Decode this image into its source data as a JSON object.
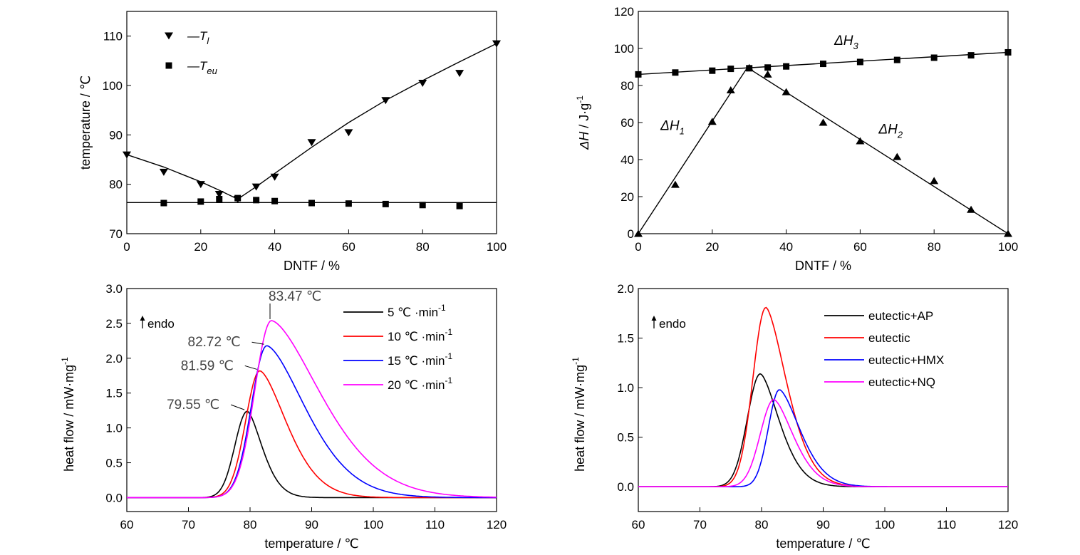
{
  "chart_data": [
    {
      "type": "scatter",
      "panel": "top-left",
      "xlabel": "DNTF / %",
      "ylabel": "temperature / ℃",
      "xlim": [
        0,
        100
      ],
      "ylim": [
        70,
        115
      ],
      "xticks": [
        0,
        20,
        40,
        60,
        80,
        100
      ],
      "yticks": [
        70,
        80,
        90,
        100,
        110
      ],
      "legend_position": "top-left",
      "series": [
        {
          "name": "—T_l",
          "legend_main": "—T",
          "legend_sub": "l",
          "marker": "triangle-down",
          "x": [
            0,
            10,
            20,
            25,
            30,
            35,
            40,
            50,
            60,
            70,
            80,
            90,
            100
          ],
          "y": [
            86.0,
            82.5,
            80.0,
            78.0,
            77.0,
            79.5,
            81.5,
            88.5,
            90.5,
            97.0,
            100.5,
            102.5,
            108.5
          ],
          "fit": {
            "x": [
              0,
              10,
              20,
              25,
              30,
              35,
              40,
              50,
              60,
              70,
              80,
              90,
              100
            ],
            "y": [
              86.0,
              83.5,
              80.5,
              78.8,
              77.0,
              79.5,
              82.2,
              87.5,
              92.5,
              97.0,
              101.0,
              104.8,
              108.5
            ]
          }
        },
        {
          "name": "—T_eu",
          "legend_main": "—T",
          "legend_sub": "eu",
          "marker": "square",
          "x": [
            10,
            20,
            25,
            30,
            35,
            40,
            50,
            60,
            70,
            80,
            90
          ],
          "y": [
            76.2,
            76.5,
            77.0,
            77.2,
            76.8,
            76.6,
            76.2,
            76.1,
            76.0,
            75.8,
            75.6
          ],
          "fit": {
            "x": [
              0,
              100
            ],
            "y": [
              76.3,
              76.3
            ]
          }
        }
      ]
    },
    {
      "type": "scatter",
      "panel": "top-right",
      "xlabel": "DNTF / %",
      "ylabel_main": "ΔH",
      "ylabel_rest": " / J·g",
      "ylabel_sup": "-1",
      "xlim": [
        0,
        100
      ],
      "ylim": [
        0,
        120
      ],
      "xticks": [
        0,
        20,
        40,
        60,
        80,
        100
      ],
      "yticks": [
        0,
        20,
        40,
        60,
        80,
        100,
        120
      ],
      "annotations": [
        {
          "main": "ΔH",
          "sub": "1",
          "x": 6,
          "y": 56
        },
        {
          "main": "ΔH",
          "sub": "2",
          "x": 65,
          "y": 54
        },
        {
          "main": "ΔH",
          "sub": "3",
          "x": 53,
          "y": 102
        }
      ],
      "series": [
        {
          "name": "ΔH3",
          "marker": "square",
          "x": [
            0,
            10,
            20,
            25,
            30,
            35,
            40,
            50,
            60,
            70,
            80,
            90,
            100
          ],
          "y": [
            86.0,
            87.0,
            88.0,
            89.0,
            89.3,
            89.7,
            90.3,
            91.7,
            92.7,
            93.8,
            95.0,
            96.3,
            97.9
          ],
          "fit": {
            "x": [
              0,
              100
            ],
            "y": [
              86.0,
              97.9
            ]
          }
        },
        {
          "name": "ΔH1 / ΔH2",
          "marker": "triangle-up",
          "x": [
            0,
            10,
            20,
            25,
            30,
            35,
            40,
            50,
            60,
            70,
            80,
            90,
            100
          ],
          "y": [
            0,
            26.5,
            60.5,
            77.5,
            89.5,
            86.0,
            76.5,
            60.0,
            50.0,
            41.5,
            28.5,
            13.0,
            0
          ],
          "fit": {
            "x": [
              0,
              29.5,
              100
            ],
            "y": [
              0,
              89.7,
              0
            ]
          }
        }
      ]
    },
    {
      "type": "line",
      "panel": "bottom-left",
      "xlabel": "temperature / ℃",
      "ylabel_main": "heat flow / mW·mg",
      "ylabel_sup": "-1",
      "xlim": [
        60,
        120
      ],
      "ylim": [
        -0.2,
        3.0
      ],
      "xticks": [
        60,
        70,
        80,
        90,
        100,
        110,
        120
      ],
      "yticks": [
        0.0,
        0.5,
        1.0,
        1.5,
        2.0,
        2.5,
        3.0
      ],
      "endo_label": "endo",
      "legend_position": "top-right",
      "series": [
        {
          "name": "5 ℃ ·min",
          "sup": "-1",
          "color": "#000000",
          "peak_x": 79.55,
          "peak_y": 1.24,
          "sigma_left": 2.0,
          "tail_right": 2.6
        },
        {
          "name": "10 ℃ ·min",
          "sup": "-1",
          "color": "#ff0000",
          "peak_x": 81.59,
          "peak_y": 1.82,
          "sigma_left": 2.3,
          "tail_right": 4.7
        },
        {
          "name": "15 ℃ ·min",
          "sup": "-1",
          "color": "#0000ff",
          "peak_x": 82.72,
          "peak_y": 2.18,
          "sigma_left": 2.5,
          "tail_right": 6.8
        },
        {
          "name": "20 ℃ ·min",
          "sup": "-1",
          "color": "#ff00ff",
          "peak_x": 83.47,
          "peak_y": 2.54,
          "sigma_left": 2.7,
          "tail_right": 8.6
        }
      ],
      "peak_labels": [
        {
          "text": "79.55 ℃",
          "x": 79.55,
          "y": 1.24
        },
        {
          "text": "81.59 ℃",
          "x": 81.59,
          "y": 1.82
        },
        {
          "text": "82.72 ℃",
          "x": 82.72,
          "y": 2.18
        },
        {
          "text": "83.47 ℃",
          "x": 83.47,
          "y": 2.54
        }
      ]
    },
    {
      "type": "line",
      "panel": "bottom-right",
      "xlabel": "temperature / ℃",
      "ylabel_main": "heat flow / mW·mg",
      "ylabel_sup": "-1",
      "xlim": [
        60,
        120
      ],
      "ylim": [
        -0.25,
        2.0
      ],
      "xticks": [
        60,
        70,
        80,
        90,
        100,
        110,
        120
      ],
      "yticks": [
        0.0,
        0.5,
        1.0,
        1.5,
        2.0
      ],
      "endo_label": "endo",
      "legend_position": "top-right",
      "series": [
        {
          "name": "eutectic+AP",
          "color": "#000000",
          "peak_x": 79.8,
          "peak_y": 1.14,
          "sigma_left": 2.1,
          "tail_right": 3.3
        },
        {
          "name": "eutectic",
          "color": "#ff0000",
          "peak_x": 80.7,
          "peak_y": 1.81,
          "sigma_left": 2.1,
          "tail_right": 3.6
        },
        {
          "name": "eutectic+HMX",
          "color": "#0000ff",
          "peak_x": 82.9,
          "peak_y": 0.98,
          "sigma_left": 1.8,
          "tail_right": 3.6
        },
        {
          "name": "eutectic+NQ",
          "color": "#ff00ff",
          "peak_x": 82.0,
          "peak_y": 0.88,
          "sigma_left": 2.2,
          "tail_right": 3.4
        }
      ]
    }
  ]
}
